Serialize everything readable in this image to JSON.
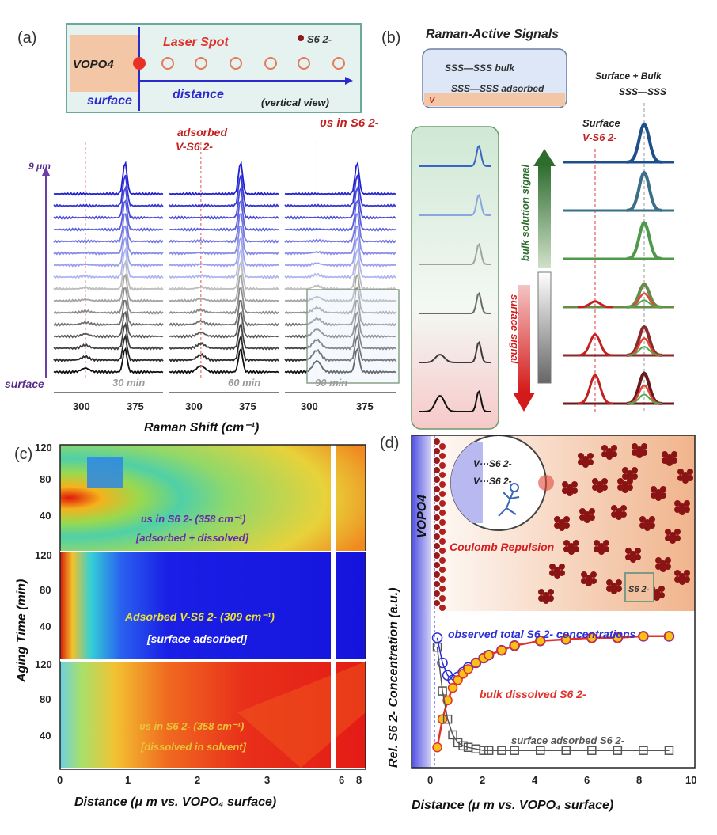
{
  "figure": {
    "panel_a": {
      "label": "(a)",
      "schematic": {
        "material": "VOPO4",
        "laser_spot": "Laser Spot",
        "species": "S6 2-",
        "surface": "surface",
        "distance": "distance",
        "view": "(vertical view)"
      },
      "annotations": {
        "height": "9 μm",
        "surface": "surface",
        "adsorbed": "adsorbed",
        "adsorbed_species": "V-S6 2-",
        "vs": "υs in S6 2-"
      },
      "times": [
        "30 min",
        "60 min",
        "90 min"
      ],
      "x_label": "Raman Shift (cm⁻¹)",
      "x_ticks": [
        "300",
        "375"
      ]
    },
    "panel_b": {
      "label": "(b)",
      "title": "Raman-Active Signals",
      "legend_bulk": "SSS—SSS bulk",
      "legend_adsorbed": "SSS—SSS adsorbed",
      "legend_v": "V",
      "bulk_arrow": "bulk solution signal",
      "surface_arrow": "surface signal",
      "surface_label": "Surface",
      "surface_species": "V-S6 2-",
      "surface_bulk": "Surface + Bulk",
      "surface_bulk_formula": "SSS—SSS"
    },
    "panel_c": {
      "label": "(c)",
      "y_label": "Aging Time (min)",
      "x_label": "Distance (μ m vs. VOPO₄ surface)",
      "y_ticks": [
        "120",
        "80",
        "40"
      ],
      "x_ticks": [
        "0",
        "1",
        "2",
        "3",
        "6",
        "8"
      ],
      "maps": [
        {
          "line1": "υs in S6 2- (358 cm⁻¹)",
          "line2": "[adsorbed + dissolved]"
        },
        {
          "line1": "Adsorbed V-S6 2- (309 cm⁻¹)",
          "line2": "[surface adsorbed]"
        },
        {
          "line1": "υs in S6 2- (358 cm⁻¹)",
          "line2": "[dissolved in solvent]"
        }
      ]
    },
    "panel_d": {
      "label": "(d)",
      "material": "VOPO4",
      "inset_species_1": "V···S6 2-",
      "inset_species_2": "V···S6 2-",
      "repulsion": "Coulomb Repulsion",
      "box_species": "S6 2-",
      "y_label": "Rel. S6 2- Concentration (a.u.)",
      "x_label": "Distance (μ m vs. VOPO₄ surface)",
      "x_ticks": [
        "0",
        "2",
        "4",
        "6",
        "8",
        "10"
      ],
      "series_labels": {
        "total": "observed total S6 2- concentrations",
        "bulk": "bulk dissolved S6 2-",
        "surface": "surface adsorbed S6 2-"
      }
    }
  },
  "chart_data": [
    {
      "type": "line",
      "panel": "(a)",
      "xlabel": "Raman Shift (cm⁻¹)",
      "xlim": [
        270,
        405
      ],
      "subplots": [
        "30 min",
        "60 min",
        "90 min"
      ],
      "peaks_cm": [
        309,
        358
      ],
      "spectra_per_subplot": 16
    },
    {
      "type": "heatmap",
      "panel": "(c)",
      "xlabel": "Distance (μ m vs. VOPO₄ surface)",
      "ylabel": "Aging Time (min)",
      "ylim": [
        0,
        120
      ]
    },
    {
      "type": "line",
      "panel": "(d)",
      "xlabel": "Distance (μ m vs. VOPO₄ surface)",
      "ylabel": "Rel. S6 2- Concentration (a.u.)",
      "xlim": [
        -1,
        10
      ],
      "series": [
        {
          "name": "observed total S6 2- concentrations",
          "color": "#2d2fd6",
          "x": [
            0,
            0.2,
            0.4,
            0.6,
            0.8,
            1.0,
            1.2,
            1.5,
            1.8,
            2,
            2.5,
            3,
            4,
            5,
            6,
            7,
            8,
            9
          ],
          "y": [
            0.82,
            0.66,
            0.58,
            0.55,
            0.57,
            0.6,
            0.63,
            0.66,
            0.69,
            0.71,
            0.74,
            0.77,
            0.8,
            0.81,
            0.82,
            0.82,
            0.83,
            0.83
          ]
        },
        {
          "name": "bulk dissolved S6 2-",
          "color": "#e0322a",
          "x": [
            0,
            0.2,
            0.4,
            0.6,
            0.8,
            1.0,
            1.2,
            1.5,
            1.8,
            2,
            2.5,
            3,
            4,
            5,
            6,
            7,
            8,
            9
          ],
          "y": [
            0.12,
            0.3,
            0.42,
            0.5,
            0.55,
            0.59,
            0.62,
            0.66,
            0.69,
            0.71,
            0.74,
            0.77,
            0.8,
            0.81,
            0.82,
            0.82,
            0.83,
            0.83
          ]
        },
        {
          "name": "surface adsorbed S6 2-",
          "color": "#555555",
          "x": [
            0,
            0.2,
            0.4,
            0.6,
            0.8,
            1.0,
            1.2,
            1.5,
            1.8,
            2,
            2.5,
            3,
            4,
            5,
            6,
            7,
            8,
            9
          ],
          "y": [
            0.76,
            0.48,
            0.3,
            0.2,
            0.15,
            0.13,
            0.12,
            0.11,
            0.1,
            0.1,
            0.1,
            0.1,
            0.1,
            0.1,
            0.1,
            0.1,
            0.1,
            0.1
          ]
        }
      ]
    }
  ]
}
